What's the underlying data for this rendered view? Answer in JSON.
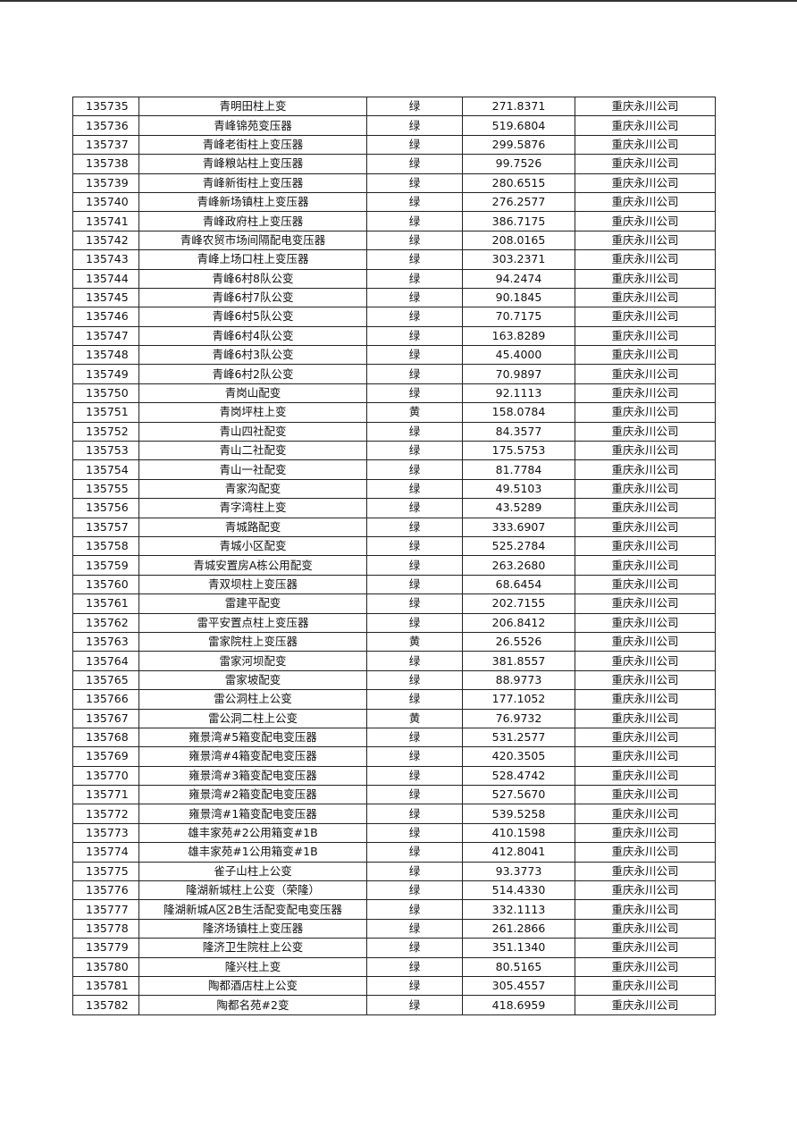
{
  "rows": [
    [
      "135735",
      "青明田柱上变",
      "绿",
      "271.8371",
      "重庆永川公司"
    ],
    [
      "135736",
      "青峰锦苑变压器",
      "绿",
      "519.6804",
      "重庆永川公司"
    ],
    [
      "135737",
      "青峰老街柱上变压器",
      "绿",
      "299.5876",
      "重庆永川公司"
    ],
    [
      "135738",
      "青峰粮站柱上变压器",
      "绿",
      "99.7526",
      "重庆永川公司"
    ],
    [
      "135739",
      "青峰新街柱上变压器",
      "绿",
      "280.6515",
      "重庆永川公司"
    ],
    [
      "135740",
      "青峰新场镇柱上变压器",
      "绿",
      "276.2577",
      "重庆永川公司"
    ],
    [
      "135741",
      "青峰政府柱上变压器",
      "绿",
      "386.7175",
      "重庆永川公司"
    ],
    [
      "135742",
      "青峰农贸市场间隔配电变压器",
      "绿",
      "208.0165",
      "重庆永川公司"
    ],
    [
      "135743",
      "青峰上场口柱上变压器",
      "绿",
      "303.2371",
      "重庆永川公司"
    ],
    [
      "135744",
      "青峰6村8队公变",
      "绿",
      "94.2474",
      "重庆永川公司"
    ],
    [
      "135745",
      "青峰6村7队公变",
      "绿",
      "90.1845",
      "重庆永川公司"
    ],
    [
      "135746",
      "青峰6村5队公变",
      "绿",
      "70.7175",
      "重庆永川公司"
    ],
    [
      "135747",
      "青峰6村4队公变",
      "绿",
      "163.8289",
      "重庆永川公司"
    ],
    [
      "135748",
      "青峰6村3队公变",
      "绿",
      "45.4000",
      "重庆永川公司"
    ],
    [
      "135749",
      "青峰6村2队公变",
      "绿",
      "70.9897",
      "重庆永川公司"
    ],
    [
      "135750",
      "青岗山配变",
      "绿",
      "92.1113",
      "重庆永川公司"
    ],
    [
      "135751",
      "青岗坪柱上变",
      "黄",
      "158.0784",
      "重庆永川公司"
    ],
    [
      "135752",
      "青山四社配变",
      "绿",
      "84.3577",
      "重庆永川公司"
    ],
    [
      "135753",
      "青山二社配变",
      "绿",
      "175.5753",
      "重庆永川公司"
    ],
    [
      "135754",
      "青山一社配变",
      "绿",
      "81.7784",
      "重庆永川公司"
    ],
    [
      "135755",
      "青家沟配变",
      "绿",
      "49.5103",
      "重庆永川公司"
    ],
    [
      "135756",
      "青字湾柱上变",
      "绿",
      "43.5289",
      "重庆永川公司"
    ],
    [
      "135757",
      "青城路配变",
      "绿",
      "333.6907",
      "重庆永川公司"
    ],
    [
      "135758",
      "青城小区配变",
      "绿",
      "525.2784",
      "重庆永川公司"
    ],
    [
      "135759",
      "青城安置房A栋公用配变",
      "绿",
      "263.2680",
      "重庆永川公司"
    ],
    [
      "135760",
      "青双坝柱上变压器",
      "绿",
      "68.6454",
      "重庆永川公司"
    ],
    [
      "135761",
      "雷建平配变",
      "绿",
      "202.7155",
      "重庆永川公司"
    ],
    [
      "135762",
      "雷平安置点柱上变压器",
      "绿",
      "206.8412",
      "重庆永川公司"
    ],
    [
      "135763",
      "雷家院柱上变压器",
      "黄",
      "26.5526",
      "重庆永川公司"
    ],
    [
      "135764",
      "雷家河坝配变",
      "绿",
      "381.8557",
      "重庆永川公司"
    ],
    [
      "135765",
      "雷家坡配变",
      "绿",
      "88.9773",
      "重庆永川公司"
    ],
    [
      "135766",
      "雷公洞柱上公变",
      "绿",
      "177.1052",
      "重庆永川公司"
    ],
    [
      "135767",
      "雷公洞二柱上公变",
      "黄",
      "76.9732",
      "重庆永川公司"
    ],
    [
      "135768",
      "雍景湾#5箱变配电变压器",
      "绿",
      "531.2577",
      "重庆永川公司"
    ],
    [
      "135769",
      "雍景湾#4箱变配电变压器",
      "绿",
      "420.3505",
      "重庆永川公司"
    ],
    [
      "135770",
      "雍景湾#3箱变配电变压器",
      "绿",
      "528.4742",
      "重庆永川公司"
    ],
    [
      "135771",
      "雍景湾#2箱变配电变压器",
      "绿",
      "527.5670",
      "重庆永川公司"
    ],
    [
      "135772",
      "雍景湾#1箱变配电变压器",
      "绿",
      "539.5258",
      "重庆永川公司"
    ],
    [
      "135773",
      "雄丰家苑#2公用箱变#1B",
      "绿",
      "410.1598",
      "重庆永川公司"
    ],
    [
      "135774",
      "雄丰家苑#1公用箱变#1B",
      "绿",
      "412.8041",
      "重庆永川公司"
    ],
    [
      "135775",
      "雀子山柱上公变",
      "绿",
      "93.3773",
      "重庆永川公司"
    ],
    [
      "135776",
      "隆湖新城柱上公变（荣隆）",
      "绿",
      "514.4330",
      "重庆永川公司"
    ],
    [
      "135777",
      "隆湖新城A区2B生活配变配电变压器",
      "绿",
      "332.1113",
      "重庆永川公司"
    ],
    [
      "135778",
      "隆济场镇柱上变压器",
      "绿",
      "261.2866",
      "重庆永川公司"
    ],
    [
      "135779",
      "隆济卫生院柱上公变",
      "绿",
      "351.1340",
      "重庆永川公司"
    ],
    [
      "135780",
      "隆兴柱上变",
      "绿",
      "80.5165",
      "重庆永川公司"
    ],
    [
      "135781",
      "陶都酒店柱上公变",
      "绿",
      "305.4557",
      "重庆永川公司"
    ],
    [
      "135782",
      "陶都名苑#2变",
      "绿",
      "418.6959",
      "重庆永川公司"
    ]
  ]
}
